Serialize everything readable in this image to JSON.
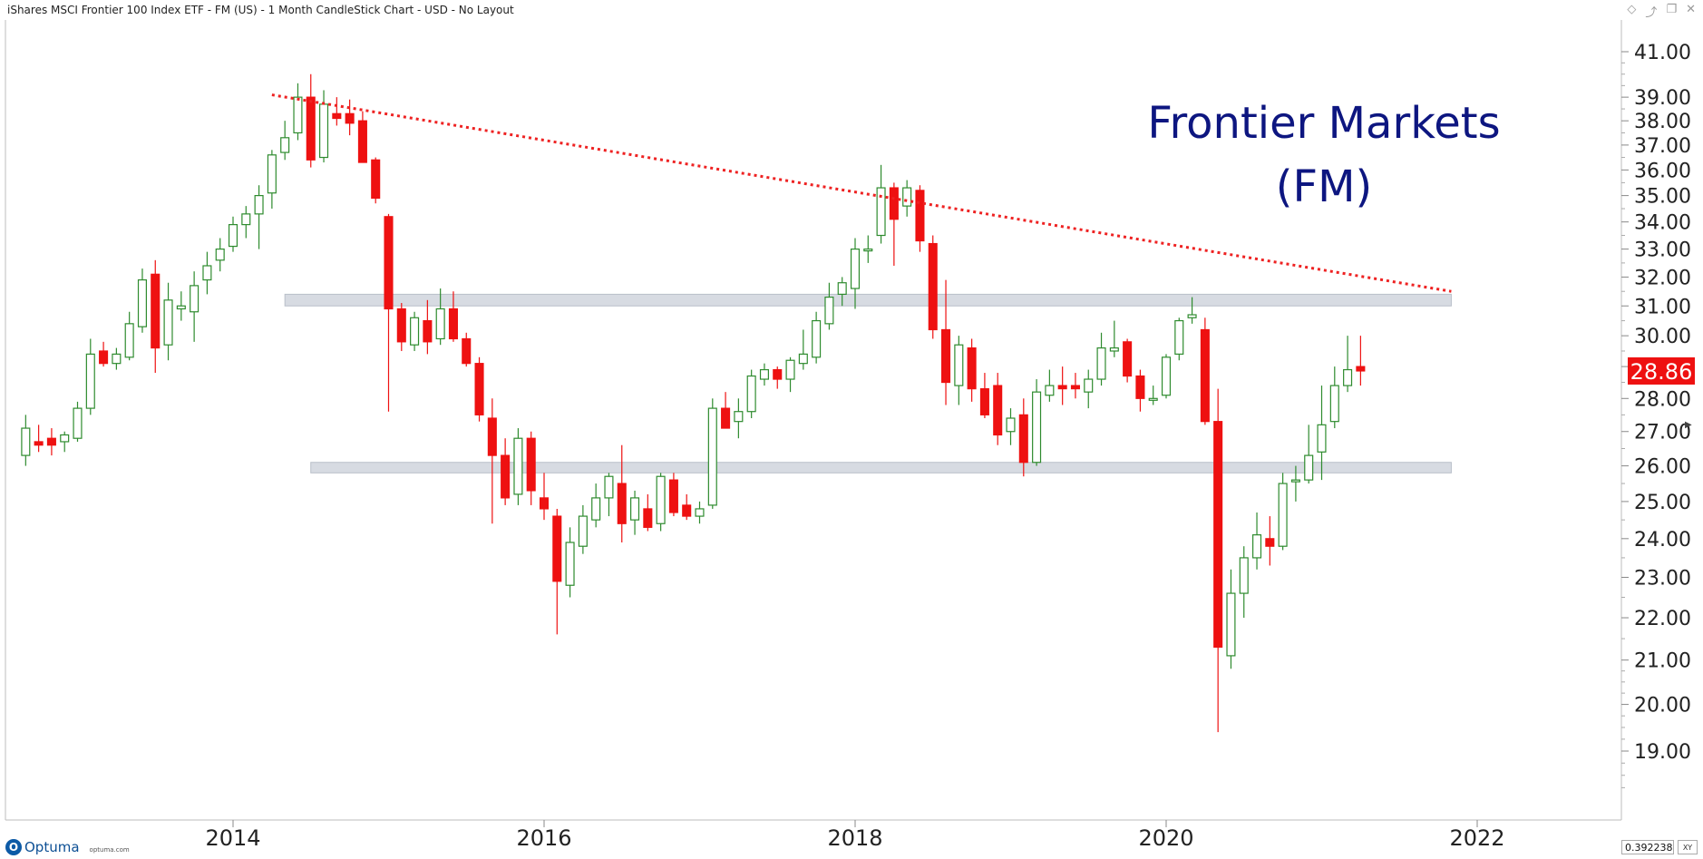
{
  "window": {
    "title": "iShares MSCI Frontier 100 Index ETF - FM (US) - 1 Month CandleStick Chart - USD - No Layout",
    "icons": [
      "diamond-icon",
      "pin-icon",
      "restore-icon",
      "close-icon"
    ]
  },
  "annotation": {
    "line1": "Frontier Markets",
    "line2": "(FM)",
    "color": "#0d1680"
  },
  "price_badge": {
    "value": "28.86",
    "color": "#ee1111"
  },
  "footer": {
    "brand": "Optuma",
    "site": "optuma.com",
    "coordinate": "0.3922385",
    "xy_label": "XY"
  },
  "colors": {
    "up": "#2e8b2e",
    "down": "#ee1111",
    "trendline": "#ee2222",
    "band": "#d7dbe2",
    "axis_text": "#222222"
  },
  "chart_data": {
    "type": "candlestick",
    "interval": "1 Month",
    "currency": "USD",
    "symbol": "FM",
    "x_ticks": [
      "2014",
      "2016",
      "2018",
      "2020",
      "2022"
    ],
    "y_ticks": [
      19,
      20,
      21,
      22,
      23,
      24,
      25,
      26,
      27,
      28,
      29,
      30,
      31,
      32,
      33,
      34,
      35,
      36,
      37,
      38,
      39,
      41
    ],
    "y_tick_labels": [
      "19.00",
      "20.00",
      "21.00",
      "22.00",
      "23.00",
      "24.00",
      "25.00",
      "26.00",
      "27.00",
      "28.00",
      "29.00",
      "30.00",
      "31.00",
      "32.00",
      "33.00",
      "34.00",
      "35.00",
      "36.00",
      "37.00",
      "38.00",
      "39.00",
      "41.00"
    ],
    "y_scale": "log",
    "grid": false,
    "last_price": 28.86,
    "trendline": {
      "start": {
        "date": "2014-04",
        "price": 39.1
      },
      "end": {
        "date": "2021-11",
        "price": 31.5
      },
      "style": "dotted"
    },
    "resistance_band": {
      "from": "2014-05",
      "to": "2021-11",
      "low": 31.0,
      "high": 31.4
    },
    "support_band": {
      "from": "2014-07",
      "to": "2021-11",
      "low": 25.8,
      "high": 26.1
    },
    "candles": [
      {
        "date": "2012-09",
        "open": 26.3,
        "high": 27.5,
        "low": 26.0,
        "close": 27.1
      },
      {
        "date": "2012-10",
        "open": 26.7,
        "high": 27.2,
        "low": 26.4,
        "close": 26.6
      },
      {
        "date": "2012-11",
        "open": 26.8,
        "high": 27.1,
        "low": 26.3,
        "close": 26.6
      },
      {
        "date": "2012-12",
        "open": 26.7,
        "high": 27.0,
        "low": 26.4,
        "close": 26.9
      },
      {
        "date": "2013-01",
        "open": 26.8,
        "high": 27.9,
        "low": 26.7,
        "close": 27.7
      },
      {
        "date": "2013-02",
        "open": 27.7,
        "high": 29.9,
        "low": 27.5,
        "close": 29.4
      },
      {
        "date": "2013-03",
        "open": 29.5,
        "high": 29.8,
        "low": 29.0,
        "close": 29.1
      },
      {
        "date": "2013-04",
        "open": 29.1,
        "high": 29.6,
        "low": 28.9,
        "close": 29.4
      },
      {
        "date": "2013-05",
        "open": 29.3,
        "high": 30.8,
        "low": 29.2,
        "close": 30.4
      },
      {
        "date": "2013-06",
        "open": 30.3,
        "high": 32.3,
        "low": 30.1,
        "close": 31.9
      },
      {
        "date": "2013-07",
        "open": 32.1,
        "high": 32.6,
        "low": 28.8,
        "close": 29.6
      },
      {
        "date": "2013-08",
        "open": 29.7,
        "high": 31.8,
        "low": 29.2,
        "close": 31.2
      },
      {
        "date": "2013-09",
        "open": 30.9,
        "high": 31.5,
        "low": 30.5,
        "close": 31.0
      },
      {
        "date": "2013-10",
        "open": 30.8,
        "high": 32.2,
        "low": 29.8,
        "close": 31.7
      },
      {
        "date": "2013-11",
        "open": 31.9,
        "high": 32.9,
        "low": 31.4,
        "close": 32.4
      },
      {
        "date": "2013-12",
        "open": 32.6,
        "high": 33.4,
        "low": 32.2,
        "close": 33.0
      },
      {
        "date": "2014-01",
        "open": 33.1,
        "high": 34.2,
        "low": 32.9,
        "close": 33.9
      },
      {
        "date": "2014-02",
        "open": 33.9,
        "high": 34.6,
        "low": 33.4,
        "close": 34.3
      },
      {
        "date": "2014-03",
        "open": 34.3,
        "high": 35.4,
        "low": 33.0,
        "close": 35.0
      },
      {
        "date": "2014-04",
        "open": 35.1,
        "high": 36.8,
        "low": 34.5,
        "close": 36.6
      },
      {
        "date": "2014-05",
        "open": 36.7,
        "high": 38.0,
        "low": 36.4,
        "close": 37.3
      },
      {
        "date": "2014-06",
        "open": 37.5,
        "high": 39.6,
        "low": 37.2,
        "close": 39.0
      },
      {
        "date": "2014-07",
        "open": 39.0,
        "high": 40.0,
        "low": 36.1,
        "close": 36.4
      },
      {
        "date": "2014-08",
        "open": 36.5,
        "high": 39.3,
        "low": 36.3,
        "close": 38.7
      },
      {
        "date": "2014-09",
        "open": 38.3,
        "high": 39.0,
        "low": 37.8,
        "close": 38.1
      },
      {
        "date": "2014-10",
        "open": 38.3,
        "high": 38.9,
        "low": 37.4,
        "close": 37.9
      },
      {
        "date": "2014-11",
        "open": 38.0,
        "high": 38.4,
        "low": 36.3,
        "close": 36.3
      },
      {
        "date": "2014-12",
        "open": 36.4,
        "high": 36.5,
        "low": 34.7,
        "close": 34.9
      },
      {
        "date": "2015-01",
        "open": 34.2,
        "high": 34.3,
        "low": 27.6,
        "close": 30.9
      },
      {
        "date": "2015-02",
        "open": 30.9,
        "high": 31.1,
        "low": 29.5,
        "close": 29.8
      },
      {
        "date": "2015-03",
        "open": 29.7,
        "high": 30.8,
        "low": 29.5,
        "close": 30.6
      },
      {
        "date": "2015-04",
        "open": 30.5,
        "high": 31.2,
        "low": 29.4,
        "close": 29.8
      },
      {
        "date": "2015-05",
        "open": 29.9,
        "high": 31.6,
        "low": 29.7,
        "close": 30.9
      },
      {
        "date": "2015-06",
        "open": 30.9,
        "high": 31.5,
        "low": 29.8,
        "close": 29.9
      },
      {
        "date": "2015-07",
        "open": 29.9,
        "high": 30.1,
        "low": 29.0,
        "close": 29.1
      },
      {
        "date": "2015-08",
        "open": 29.1,
        "high": 29.3,
        "low": 27.3,
        "close": 27.5
      },
      {
        "date": "2015-09",
        "open": 27.4,
        "high": 28.0,
        "low": 24.4,
        "close": 26.3
      },
      {
        "date": "2015-10",
        "open": 26.3,
        "high": 26.8,
        "low": 24.9,
        "close": 25.1
      },
      {
        "date": "2015-11",
        "open": 25.2,
        "high": 27.1,
        "low": 24.9,
        "close": 26.8
      },
      {
        "date": "2015-12",
        "open": 26.8,
        "high": 27.0,
        "low": 24.9,
        "close": 25.3
      },
      {
        "date": "2016-01",
        "open": 25.1,
        "high": 25.8,
        "low": 24.5,
        "close": 24.8
      },
      {
        "date": "2016-02",
        "open": 24.6,
        "high": 24.8,
        "low": 21.6,
        "close": 22.9
      },
      {
        "date": "2016-03",
        "open": 22.8,
        "high": 24.3,
        "low": 22.5,
        "close": 23.9
      },
      {
        "date": "2016-04",
        "open": 23.8,
        "high": 24.9,
        "low": 23.6,
        "close": 24.6
      },
      {
        "date": "2016-05",
        "open": 24.5,
        "high": 25.5,
        "low": 24.3,
        "close": 25.1
      },
      {
        "date": "2016-06",
        "open": 25.1,
        "high": 25.8,
        "low": 24.6,
        "close": 25.7
      },
      {
        "date": "2016-07",
        "open": 25.5,
        "high": 26.6,
        "low": 23.9,
        "close": 24.4
      },
      {
        "date": "2016-08",
        "open": 24.5,
        "high": 25.3,
        "low": 24.1,
        "close": 25.1
      },
      {
        "date": "2016-09",
        "open": 24.8,
        "high": 25.2,
        "low": 24.2,
        "close": 24.3
      },
      {
        "date": "2016-10",
        "open": 24.4,
        "high": 25.8,
        "low": 24.2,
        "close": 25.7
      },
      {
        "date": "2016-11",
        "open": 25.6,
        "high": 25.8,
        "low": 24.6,
        "close": 24.7
      },
      {
        "date": "2016-12",
        "open": 24.9,
        "high": 25.2,
        "low": 24.5,
        "close": 24.6
      },
      {
        "date": "2017-01",
        "open": 24.6,
        "high": 25.0,
        "low": 24.4,
        "close": 24.8
      },
      {
        "date": "2017-02",
        "open": 24.9,
        "high": 28.0,
        "low": 24.8,
        "close": 27.7
      },
      {
        "date": "2017-03",
        "open": 27.7,
        "high": 28.2,
        "low": 27.3,
        "close": 27.1
      },
      {
        "date": "2017-04",
        "open": 27.3,
        "high": 28.0,
        "low": 26.8,
        "close": 27.6
      },
      {
        "date": "2017-05",
        "open": 27.6,
        "high": 28.9,
        "low": 27.4,
        "close": 28.7
      },
      {
        "date": "2017-06",
        "open": 28.6,
        "high": 29.1,
        "low": 28.4,
        "close": 28.9
      },
      {
        "date": "2017-07",
        "open": 28.9,
        "high": 29.0,
        "low": 28.3,
        "close": 28.6
      },
      {
        "date": "2017-08",
        "open": 28.6,
        "high": 29.3,
        "low": 28.2,
        "close": 29.2
      },
      {
        "date": "2017-09",
        "open": 29.1,
        "high": 30.2,
        "low": 28.9,
        "close": 29.4
      },
      {
        "date": "2017-10",
        "open": 29.3,
        "high": 30.8,
        "low": 29.1,
        "close": 30.5
      },
      {
        "date": "2017-11",
        "open": 30.4,
        "high": 31.8,
        "low": 30.2,
        "close": 31.3
      },
      {
        "date": "2017-12",
        "open": 31.4,
        "high": 32.0,
        "low": 31.0,
        "close": 31.8
      },
      {
        "date": "2018-01",
        "open": 31.6,
        "high": 33.4,
        "low": 30.9,
        "close": 33.0
      },
      {
        "date": "2018-02",
        "open": 33.0,
        "high": 33.5,
        "low": 32.5,
        "close": 33.0
      },
      {
        "date": "2018-03",
        "open": 33.5,
        "high": 36.2,
        "low": 33.2,
        "close": 35.3
      },
      {
        "date": "2018-04",
        "open": 35.3,
        "high": 35.5,
        "low": 32.4,
        "close": 34.1
      },
      {
        "date": "2018-05",
        "open": 34.6,
        "high": 35.6,
        "low": 34.2,
        "close": 35.3
      },
      {
        "date": "2018-06",
        "open": 35.2,
        "high": 35.4,
        "low": 32.9,
        "close": 33.3
      },
      {
        "date": "2018-07",
        "open": 33.2,
        "high": 33.5,
        "low": 29.9,
        "close": 30.2
      },
      {
        "date": "2018-08",
        "open": 30.2,
        "high": 31.9,
        "low": 27.8,
        "close": 28.5
      },
      {
        "date": "2018-09",
        "open": 28.4,
        "high": 30.0,
        "low": 27.8,
        "close": 29.7
      },
      {
        "date": "2018-10",
        "open": 29.6,
        "high": 29.9,
        "low": 27.9,
        "close": 28.3
      },
      {
        "date": "2018-11",
        "open": 28.3,
        "high": 28.8,
        "low": 27.4,
        "close": 27.5
      },
      {
        "date": "2018-12",
        "open": 28.4,
        "high": 28.8,
        "low": 26.6,
        "close": 26.9
      },
      {
        "date": "2019-01",
        "open": 27.0,
        "high": 27.7,
        "low": 26.6,
        "close": 27.4
      },
      {
        "date": "2019-02",
        "open": 27.5,
        "high": 28.0,
        "low": 25.7,
        "close": 26.1
      },
      {
        "date": "2019-03",
        "open": 26.1,
        "high": 28.6,
        "low": 26.0,
        "close": 28.2
      },
      {
        "date": "2019-04",
        "open": 28.1,
        "high": 28.9,
        "low": 27.9,
        "close": 28.4
      },
      {
        "date": "2019-05",
        "open": 28.4,
        "high": 29.0,
        "low": 27.8,
        "close": 28.3
      },
      {
        "date": "2019-06",
        "open": 28.4,
        "high": 28.8,
        "low": 28.0,
        "close": 28.3
      },
      {
        "date": "2019-07",
        "open": 28.2,
        "high": 28.9,
        "low": 27.7,
        "close": 28.6
      },
      {
        "date": "2019-08",
        "open": 28.6,
        "high": 30.1,
        "low": 28.4,
        "close": 29.6
      },
      {
        "date": "2019-09",
        "open": 29.5,
        "high": 30.5,
        "low": 29.3,
        "close": 29.6
      },
      {
        "date": "2019-10",
        "open": 29.8,
        "high": 29.9,
        "low": 28.5,
        "close": 28.7
      },
      {
        "date": "2019-11",
        "open": 28.7,
        "high": 28.9,
        "low": 27.6,
        "close": 28.0
      },
      {
        "date": "2019-12",
        "open": 28.0,
        "high": 28.4,
        "low": 27.8,
        "close": 28.0
      },
      {
        "date": "2020-01",
        "open": 28.1,
        "high": 29.4,
        "low": 28.0,
        "close": 29.3
      },
      {
        "date": "2020-02",
        "open": 29.4,
        "high": 30.6,
        "low": 29.2,
        "close": 30.5
      },
      {
        "date": "2020-03",
        "open": 30.6,
        "high": 31.3,
        "low": 30.4,
        "close": 30.7
      },
      {
        "date": "2020-04",
        "open": 30.2,
        "high": 30.6,
        "low": 27.2,
        "close": 27.3
      },
      {
        "date": "2020-05",
        "open": 27.3,
        "high": 28.3,
        "low": 19.4,
        "close": 21.3
      },
      {
        "date": "2020-06",
        "open": 21.1,
        "high": 23.2,
        "low": 20.8,
        "close": 22.6
      },
      {
        "date": "2020-07",
        "open": 22.6,
        "high": 23.8,
        "low": 22.0,
        "close": 23.5
      },
      {
        "date": "2020-08",
        "open": 23.5,
        "high": 24.7,
        "low": 23.2,
        "close": 24.1
      },
      {
        "date": "2020-09",
        "open": 24.0,
        "high": 24.6,
        "low": 23.3,
        "close": 23.8
      },
      {
        "date": "2020-10",
        "open": 23.8,
        "high": 25.8,
        "low": 23.7,
        "close": 25.5
      },
      {
        "date": "2020-11",
        "open": 25.6,
        "high": 26.0,
        "low": 25.0,
        "close": 25.6
      },
      {
        "date": "2020-12",
        "open": 25.6,
        "high": 27.2,
        "low": 25.5,
        "close": 26.3
      },
      {
        "date": "2021-01",
        "open": 26.4,
        "high": 28.4,
        "low": 25.6,
        "close": 27.2
      },
      {
        "date": "2021-02",
        "open": 27.3,
        "high": 29.0,
        "low": 27.1,
        "close": 28.4
      },
      {
        "date": "2021-03",
        "open": 28.4,
        "high": 30.0,
        "low": 28.2,
        "close": 28.9
      },
      {
        "date": "2021-04",
        "open": 29.0,
        "high": 30.0,
        "low": 28.4,
        "close": 28.86
      }
    ]
  }
}
